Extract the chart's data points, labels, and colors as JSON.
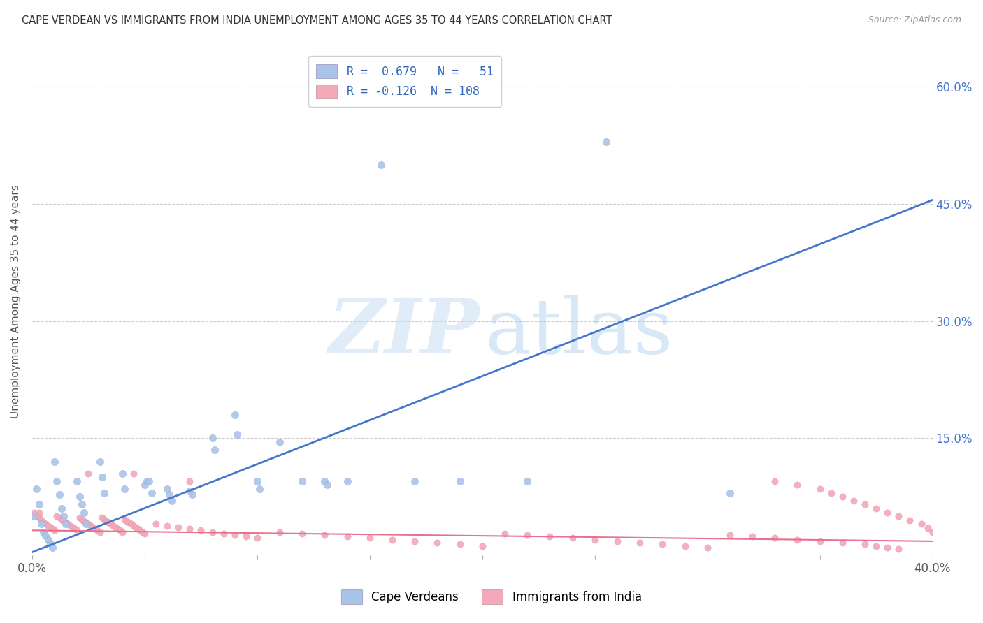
{
  "title": "CAPE VERDEAN VS IMMIGRANTS FROM INDIA UNEMPLOYMENT AMONG AGES 35 TO 44 YEARS CORRELATION CHART",
  "source": "Source: ZipAtlas.com",
  "ylabel": "Unemployment Among Ages 35 to 44 years",
  "xlim": [
    0,
    0.4
  ],
  "ylim": [
    0,
    0.65
  ],
  "xticks": [
    0.0,
    0.05,
    0.1,
    0.15,
    0.2,
    0.25,
    0.3,
    0.35,
    0.4
  ],
  "xticklabels": [
    "0.0%",
    "",
    "",
    "",
    "",
    "",
    "",
    "",
    "40.0%"
  ],
  "ytick_positions": [
    0.0,
    0.15,
    0.3,
    0.45,
    0.6
  ],
  "yticklabels": [
    "",
    "15.0%",
    "30.0%",
    "45.0%",
    "60.0%"
  ],
  "color_blue": "#aac4e8",
  "color_pink": "#f4a8b8",
  "line_color_blue": "#4477cc",
  "line_color_pink": "#e87090",
  "R_blue": 0.679,
  "N_blue": 51,
  "R_pink": -0.126,
  "N_pink": 108,
  "legend_label_blue": "Cape Verdeans",
  "legend_label_pink": "Immigrants from India",
  "blue_line_x": [
    0.0,
    0.4
  ],
  "blue_line_y": [
    0.004,
    0.455
  ],
  "pink_line_x": [
    0.0,
    0.4
  ],
  "pink_line_y": [
    0.032,
    0.018
  ],
  "blue_scatter_x": [
    0.001,
    0.002,
    0.003,
    0.004,
    0.005,
    0.006,
    0.007,
    0.008,
    0.009,
    0.01,
    0.011,
    0.012,
    0.013,
    0.014,
    0.015,
    0.02,
    0.021,
    0.022,
    0.023,
    0.024,
    0.03,
    0.031,
    0.032,
    0.04,
    0.041,
    0.05,
    0.051,
    0.052,
    0.053,
    0.06,
    0.061,
    0.062,
    0.07,
    0.071,
    0.08,
    0.081,
    0.09,
    0.091,
    0.1,
    0.101,
    0.11,
    0.12,
    0.13,
    0.131,
    0.14,
    0.155,
    0.17,
    0.19,
    0.22,
    0.255,
    0.31
  ],
  "blue_scatter_y": [
    0.05,
    0.085,
    0.065,
    0.04,
    0.03,
    0.025,
    0.02,
    0.015,
    0.01,
    0.12,
    0.095,
    0.078,
    0.06,
    0.05,
    0.04,
    0.095,
    0.075,
    0.065,
    0.055,
    0.04,
    0.12,
    0.1,
    0.08,
    0.105,
    0.085,
    0.09,
    0.095,
    0.095,
    0.08,
    0.085,
    0.078,
    0.07,
    0.082,
    0.078,
    0.15,
    0.135,
    0.18,
    0.155,
    0.095,
    0.085,
    0.145,
    0.095,
    0.095,
    0.09,
    0.095,
    0.5,
    0.095,
    0.095,
    0.095,
    0.53,
    0.08
  ],
  "pink_scatter_x": [
    0.001,
    0.002,
    0.003,
    0.004,
    0.005,
    0.006,
    0.007,
    0.008,
    0.009,
    0.01,
    0.011,
    0.012,
    0.013,
    0.014,
    0.015,
    0.016,
    0.017,
    0.018,
    0.019,
    0.02,
    0.021,
    0.022,
    0.023,
    0.024,
    0.025,
    0.026,
    0.027,
    0.028,
    0.029,
    0.03,
    0.031,
    0.032,
    0.033,
    0.034,
    0.035,
    0.036,
    0.037,
    0.038,
    0.039,
    0.04,
    0.041,
    0.042,
    0.043,
    0.044,
    0.045,
    0.046,
    0.047,
    0.048,
    0.049,
    0.05,
    0.055,
    0.06,
    0.065,
    0.07,
    0.075,
    0.08,
    0.085,
    0.09,
    0.095,
    0.1,
    0.11,
    0.12,
    0.13,
    0.14,
    0.15,
    0.16,
    0.17,
    0.18,
    0.19,
    0.2,
    0.21,
    0.22,
    0.23,
    0.24,
    0.25,
    0.26,
    0.27,
    0.28,
    0.29,
    0.3,
    0.31,
    0.32,
    0.33,
    0.34,
    0.35,
    0.36,
    0.37,
    0.375,
    0.38,
    0.385,
    0.33,
    0.34,
    0.35,
    0.355,
    0.36,
    0.365,
    0.37,
    0.375,
    0.38,
    0.385,
    0.39,
    0.395,
    0.398,
    0.4,
    0.003,
    0.025,
    0.045,
    0.07
  ],
  "pink_scatter_y": [
    0.055,
    0.05,
    0.048,
    0.045,
    0.042,
    0.04,
    0.038,
    0.036,
    0.034,
    0.032,
    0.05,
    0.048,
    0.046,
    0.044,
    0.042,
    0.04,
    0.038,
    0.036,
    0.034,
    0.032,
    0.048,
    0.046,
    0.044,
    0.042,
    0.04,
    0.038,
    0.036,
    0.034,
    0.032,
    0.03,
    0.048,
    0.046,
    0.044,
    0.042,
    0.04,
    0.038,
    0.036,
    0.034,
    0.032,
    0.03,
    0.046,
    0.044,
    0.042,
    0.04,
    0.038,
    0.036,
    0.034,
    0.032,
    0.03,
    0.028,
    0.04,
    0.038,
    0.036,
    0.034,
    0.032,
    0.03,
    0.028,
    0.026,
    0.024,
    0.022,
    0.03,
    0.028,
    0.026,
    0.024,
    0.022,
    0.02,
    0.018,
    0.016,
    0.014,
    0.012,
    0.028,
    0.026,
    0.024,
    0.022,
    0.02,
    0.018,
    0.016,
    0.014,
    0.012,
    0.01,
    0.026,
    0.024,
    0.022,
    0.02,
    0.018,
    0.016,
    0.014,
    0.012,
    0.01,
    0.008,
    0.095,
    0.09,
    0.085,
    0.08,
    0.075,
    0.07,
    0.065,
    0.06,
    0.055,
    0.05,
    0.045,
    0.04,
    0.035,
    0.03,
    0.055,
    0.105,
    0.105,
    0.095
  ]
}
